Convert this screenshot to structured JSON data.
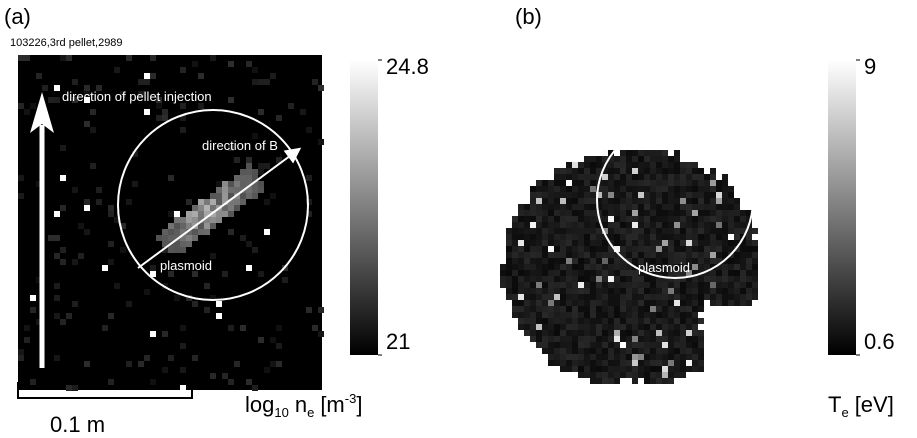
{
  "panels": [
    {
      "label": "(a)",
      "caption": "103226,3rd pellet,2989",
      "annotations": [
        "direction of pellet injection",
        "direction of B",
        "plasmoid"
      ],
      "colorbar": {
        "lim": [
          21,
          24.8
        ],
        "ticks": [
          21,
          24.8
        ],
        "label": {
          "log": "log",
          "log_sub": "10",
          "symbol": "n",
          "symbol_sub": "e",
          "unit": "[m",
          "unit_sup": "-3",
          "close": "]"
        }
      },
      "scale_bar": "0.1 m"
    },
    {
      "label": "(b)",
      "annotations": [
        "plasmoid"
      ],
      "colorbar": {
        "lim": [
          0.6,
          9
        ],
        "ticks": [
          0.6,
          9
        ],
        "label": {
          "symbol": "T",
          "symbol_sub": "e",
          "unit": "[eV]"
        }
      }
    }
  ]
}
